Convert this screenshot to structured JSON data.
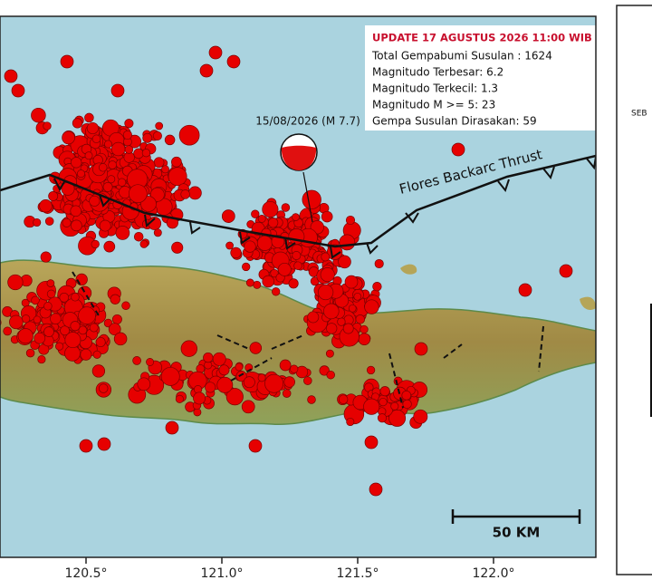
{
  "info_box": {
    "title": "UPDATE 17 AGUSTUS 2026 11:00 WIB",
    "lines": [
      "Total Gempabumi Susulan : 1624",
      "Magnitudo Terbesar: 6.2",
      "Magnitudo Terkecil: 1.3",
      "Magnitudo M >= 5: 23",
      "Gempa Susulan Dirasakan: 59"
    ]
  },
  "mainshock_label": "15/08/2026 (M 7.7)",
  "fault_label": "Flores Backarc Thrust",
  "scale_bar_label": "50 KM",
  "longitude_labels": [
    "120.5°",
    "121.0°",
    "121.5°",
    "122.0°"
  ],
  "side_panel": {
    "text": "SEB"
  }
}
